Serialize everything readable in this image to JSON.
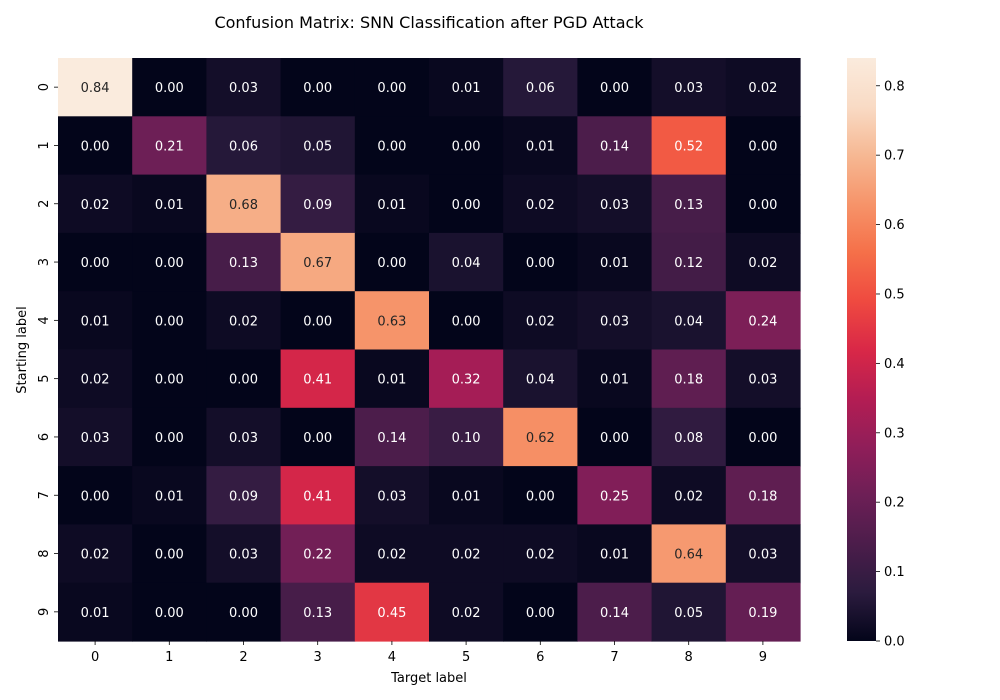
{
  "chart_data": {
    "type": "heatmap",
    "title": "Confusion Matrix: SNN Classification after PGD Attack",
    "xlabel": "Target label",
    "ylabel": "Starting label",
    "x_categories": [
      "0",
      "1",
      "2",
      "3",
      "4",
      "5",
      "6",
      "7",
      "8",
      "9"
    ],
    "y_categories": [
      "0",
      "1",
      "2",
      "3",
      "4",
      "5",
      "6",
      "7",
      "8",
      "9"
    ],
    "values": [
      [
        0.84,
        0.0,
        0.03,
        0.0,
        0.0,
        0.01,
        0.06,
        0.0,
        0.03,
        0.02
      ],
      [
        0.0,
        0.21,
        0.06,
        0.05,
        0.0,
        0.0,
        0.01,
        0.14,
        0.52,
        0.0
      ],
      [
        0.02,
        0.01,
        0.68,
        0.09,
        0.01,
        0.0,
        0.02,
        0.03,
        0.13,
        0.0
      ],
      [
        0.0,
        0.0,
        0.13,
        0.67,
        0.0,
        0.04,
        0.0,
        0.01,
        0.12,
        0.02
      ],
      [
        0.01,
        0.0,
        0.02,
        0.0,
        0.63,
        0.0,
        0.02,
        0.03,
        0.04,
        0.24
      ],
      [
        0.02,
        0.0,
        0.0,
        0.41,
        0.01,
        0.32,
        0.04,
        0.01,
        0.18,
        0.03
      ],
      [
        0.03,
        0.0,
        0.03,
        0.0,
        0.14,
        0.1,
        0.62,
        0.0,
        0.08,
        0.0
      ],
      [
        0.0,
        0.01,
        0.09,
        0.41,
        0.03,
        0.01,
        0.0,
        0.25,
        0.02,
        0.18
      ],
      [
        0.02,
        0.0,
        0.03,
        0.22,
        0.02,
        0.02,
        0.02,
        0.01,
        0.64,
        0.03
      ],
      [
        0.01,
        0.0,
        0.0,
        0.13,
        0.45,
        0.02,
        0.0,
        0.14,
        0.05,
        0.19
      ]
    ],
    "colorbar": {
      "range": [
        0,
        0.84
      ],
      "ticks": [
        0.0,
        0.1,
        0.2,
        0.3,
        0.4,
        0.5,
        0.6,
        0.7,
        0.8
      ],
      "tick_labels": [
        "0.0",
        "0.1",
        "0.2",
        "0.3",
        "0.4",
        "0.5",
        "0.6",
        "0.7",
        "0.8"
      ],
      "colormap": "rocket",
      "color_stops": [
        "#03051a",
        "#2b1b3e",
        "#4c1d4b",
        "#6d1f56",
        "#901e59",
        "#b41d53",
        "#d92847",
        "#ef4a40",
        "#f57049",
        "#f6946a",
        "#f6b893",
        "#f9dbc5",
        "#faebdd"
      ]
    },
    "annotation_dark_text_color": "#262626",
    "annotation_light_text_color": "#ffffff",
    "grid": false,
    "legend": "none"
  }
}
